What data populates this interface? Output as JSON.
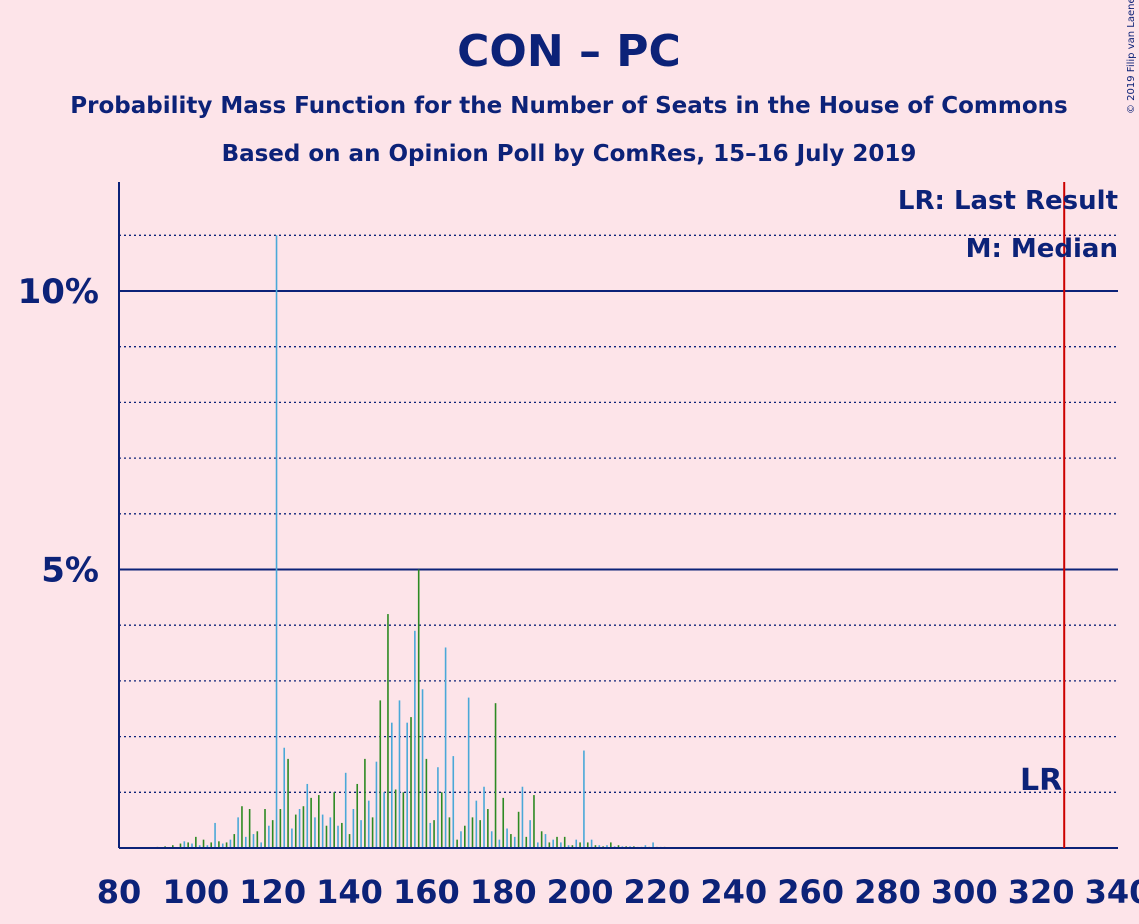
{
  "title": "CON – PC",
  "subtitle1": "Probability Mass Function for the Number of Seats in the House of Commons",
  "subtitle2": "Based on an Opinion Poll by ComRes, 15–16 July 2019",
  "copyright": "© 2019 Filip van Laenen",
  "legend": {
    "lr": "LR: Last Result",
    "median": "M: Median"
  },
  "lr_marker_label": "LR",
  "colors": {
    "background": "#fde4e9",
    "axis": "#0c2278",
    "bar_green": "#2d8a22",
    "bar_blue": "#4aa8d8",
    "last_result": "#cc0000"
  },
  "chart_data": {
    "type": "bar",
    "xlim": [
      80,
      340
    ],
    "ylim": [
      0,
      12
    ],
    "x_ticks": [
      80,
      100,
      120,
      140,
      160,
      180,
      200,
      220,
      240,
      260,
      280,
      300,
      320,
      340
    ],
    "y_ticks_major": [
      {
        "value": 5,
        "label": "5%"
      },
      {
        "value": 10,
        "label": "10%"
      }
    ],
    "y_ticks_minor": [
      1,
      2,
      3,
      4,
      6,
      7,
      8,
      9,
      11
    ],
    "last_result": 326,
    "series": [
      {
        "name": "bars",
        "points": [
          [
            90,
            0.02
          ],
          [
            92,
            0.03
          ],
          [
            94,
            0.05
          ],
          [
            96,
            0.08
          ],
          [
            97,
            0.12
          ],
          [
            98,
            0.1
          ],
          [
            99,
            0.08
          ],
          [
            100,
            0.2
          ],
          [
            101,
            0.05
          ],
          [
            102,
            0.15
          ],
          [
            103,
            0.05
          ],
          [
            104,
            0.1
          ],
          [
            105,
            0.45
          ],
          [
            106,
            0.12
          ],
          [
            107,
            0.08
          ],
          [
            108,
            0.1
          ],
          [
            109,
            0.15
          ],
          [
            110,
            0.25
          ],
          [
            111,
            0.55
          ],
          [
            112,
            0.75
          ],
          [
            113,
            0.2
          ],
          [
            114,
            0.7
          ],
          [
            115,
            0.25
          ],
          [
            116,
            0.3
          ],
          [
            117,
            0.1
          ],
          [
            118,
            0.7
          ],
          [
            119,
            0.4
          ],
          [
            120,
            0.5
          ],
          [
            121,
            11.0
          ],
          [
            122,
            0.7
          ],
          [
            123,
            1.8
          ],
          [
            124,
            1.6
          ],
          [
            125,
            0.35
          ],
          [
            126,
            0.6
          ],
          [
            127,
            0.7
          ],
          [
            128,
            0.75
          ],
          [
            129,
            1.15
          ],
          [
            130,
            0.9
          ],
          [
            131,
            0.55
          ],
          [
            132,
            0.95
          ],
          [
            133,
            0.6
          ],
          [
            134,
            0.4
          ],
          [
            135,
            0.55
          ],
          [
            136,
            1.0
          ],
          [
            137,
            0.4
          ],
          [
            138,
            0.45
          ],
          [
            139,
            1.35
          ],
          [
            140,
            0.25
          ],
          [
            141,
            0.7
          ],
          [
            142,
            1.15
          ],
          [
            143,
            0.5
          ],
          [
            144,
            1.6
          ],
          [
            145,
            0.85
          ],
          [
            146,
            0.55
          ],
          [
            147,
            1.55
          ],
          [
            148,
            2.65
          ],
          [
            149,
            1.0
          ],
          [
            150,
            4.2
          ],
          [
            151,
            2.25
          ],
          [
            152,
            1.05
          ],
          [
            153,
            2.65
          ],
          [
            154,
            1.0
          ],
          [
            155,
            2.25
          ],
          [
            156,
            2.35
          ],
          [
            157,
            3.9
          ],
          [
            158,
            5.0
          ],
          [
            159,
            2.85
          ],
          [
            160,
            1.6
          ],
          [
            161,
            0.45
          ],
          [
            162,
            0.5
          ],
          [
            163,
            1.45
          ],
          [
            164,
            1.0
          ],
          [
            165,
            3.6
          ],
          [
            166,
            0.55
          ],
          [
            167,
            1.65
          ],
          [
            168,
            0.15
          ],
          [
            169,
            0.3
          ],
          [
            170,
            0.4
          ],
          [
            171,
            2.7
          ],
          [
            172,
            0.55
          ],
          [
            173,
            0.85
          ],
          [
            174,
            0.5
          ],
          [
            175,
            1.1
          ],
          [
            176,
            0.7
          ],
          [
            177,
            0.3
          ],
          [
            178,
            2.6
          ],
          [
            179,
            0.15
          ],
          [
            180,
            0.9
          ],
          [
            181,
            0.35
          ],
          [
            182,
            0.25
          ],
          [
            183,
            0.2
          ],
          [
            184,
            0.65
          ],
          [
            185,
            1.1
          ],
          [
            186,
            0.2
          ],
          [
            187,
            0.5
          ],
          [
            188,
            0.95
          ],
          [
            189,
            0.1
          ],
          [
            190,
            0.3
          ],
          [
            191,
            0.25
          ],
          [
            192,
            0.1
          ],
          [
            193,
            0.15
          ],
          [
            194,
            0.2
          ],
          [
            195,
            0.1
          ],
          [
            196,
            0.2
          ],
          [
            197,
            0.05
          ],
          [
            198,
            0.05
          ],
          [
            199,
            0.15
          ],
          [
            200,
            0.1
          ],
          [
            201,
            1.75
          ],
          [
            202,
            0.1
          ],
          [
            203,
            0.15
          ],
          [
            204,
            0.05
          ],
          [
            205,
            0.05
          ],
          [
            206,
            0.03
          ],
          [
            207,
            0.05
          ],
          [
            208,
            0.1
          ],
          [
            209,
            0.03
          ],
          [
            210,
            0.05
          ],
          [
            211,
            0.03
          ],
          [
            212,
            0.03
          ],
          [
            213,
            0.03
          ],
          [
            214,
            0.03
          ],
          [
            215,
            0.02
          ],
          [
            216,
            0.02
          ],
          [
            217,
            0.05
          ],
          [
            218,
            0.02
          ],
          [
            219,
            0.1
          ],
          [
            220,
            0.02
          ],
          [
            221,
            0.02
          ],
          [
            222,
            0.02
          ]
        ]
      }
    ]
  }
}
